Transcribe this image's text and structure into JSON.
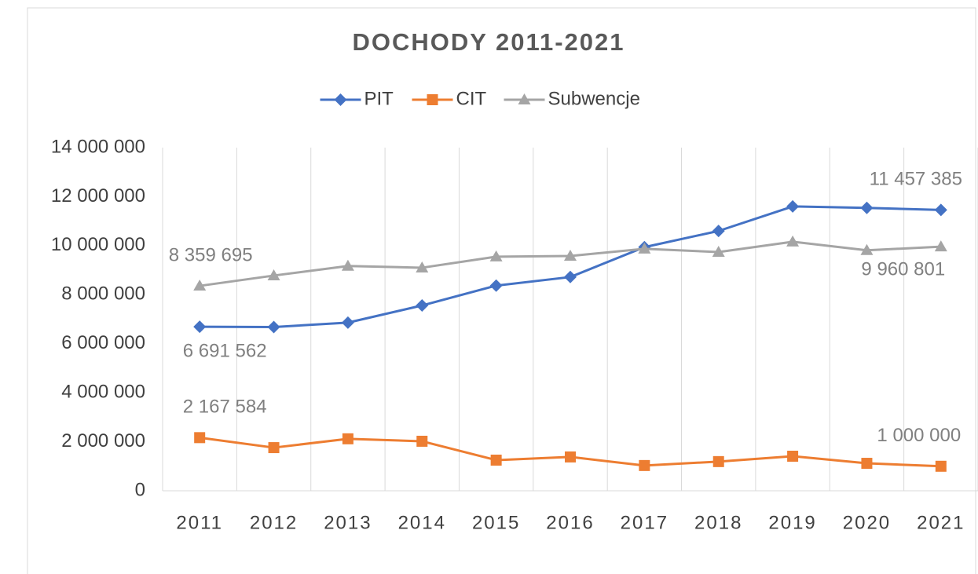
{
  "chart_data": {
    "type": "line",
    "title": "DOCHODY 2011-2021",
    "categories": [
      "2011",
      "2012",
      "2013",
      "2014",
      "2015",
      "2016",
      "2017",
      "2018",
      "2019",
      "2020",
      "2021"
    ],
    "series": [
      {
        "name": "PIT",
        "color": "#4472c4",
        "marker": "diamond",
        "values": [
          6691562,
          6680000,
          6860000,
          7560000,
          8370000,
          8720000,
          9940000,
          10600000,
          11600000,
          11540000,
          11457385
        ],
        "value_labels": [
          "6 691 562",
          null,
          null,
          null,
          null,
          null,
          null,
          null,
          null,
          null,
          "11 457 385"
        ]
      },
      {
        "name": "CIT",
        "color": "#ed7d31",
        "marker": "square",
        "values": [
          2167584,
          1760000,
          2120000,
          2020000,
          1250000,
          1380000,
          1030000,
          1190000,
          1410000,
          1120000,
          1000000
        ],
        "value_labels": [
          "2 167 584",
          null,
          null,
          null,
          null,
          null,
          null,
          null,
          null,
          null,
          "1 000 000"
        ]
      },
      {
        "name": "Subwencje",
        "color": "#a5a5a5",
        "marker": "triangle",
        "values": [
          8359695,
          8780000,
          9170000,
          9100000,
          9550000,
          9580000,
          9870000,
          9740000,
          10160000,
          9810000,
          9960801
        ],
        "value_labels": [
          "8 359 695",
          null,
          null,
          null,
          null,
          null,
          null,
          null,
          null,
          null,
          "9 960 801"
        ]
      }
    ],
    "ylim": [
      0,
      14000000
    ],
    "yticks": [
      {
        "value": 0,
        "label": "0"
      },
      {
        "value": 2000000,
        "label": "2 000 000"
      },
      {
        "value": 4000000,
        "label": "4 000 000"
      },
      {
        "value": 6000000,
        "label": "6 000 000"
      },
      {
        "value": 8000000,
        "label": "8 000 000"
      },
      {
        "value": 10000000,
        "label": "10 000 000"
      },
      {
        "value": 12000000,
        "label": "12 000 000"
      },
      {
        "value": 14000000,
        "label": "14 000 000"
      }
    ],
    "grid": false,
    "category_grid": true,
    "legend": "top"
  }
}
